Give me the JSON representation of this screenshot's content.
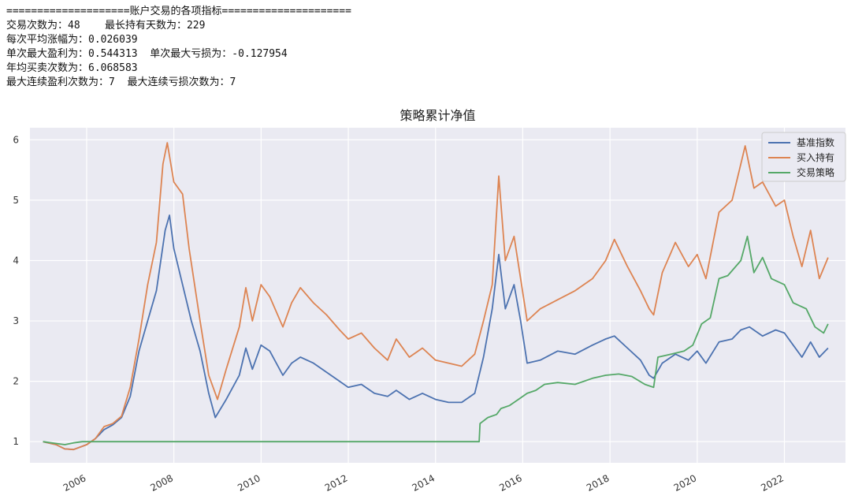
{
  "stats": {
    "header": "====================账户交易的各项指标=====================",
    "lines": [
      "交易次数为：48    最长持有天数为：229",
      "每次平均涨幅为：0.026039",
      "单次最大盈利为：0.544313  单次最大亏损为：-0.127954",
      "年均买卖次数为：6.068583",
      "最大连续盈利次数为：7  最大连续亏损次数为：7"
    ]
  },
  "colors": {
    "plot_bg": "#eaeaf2",
    "grid": "#ffffff",
    "benchmark": "#4c72b0",
    "buy_hold": "#dd8452",
    "strategy": "#55a868"
  },
  "chart_data": {
    "type": "line",
    "title": "策略累计净值",
    "xlabel": "",
    "ylabel": "",
    "xlim": [
      2004.7,
      2023.4
    ],
    "ylim": [
      0.65,
      6.2
    ],
    "x_ticks": [
      2006,
      2008,
      2010,
      2012,
      2014,
      2016,
      2018,
      2020,
      2022
    ],
    "y_ticks": [
      1,
      2,
      3,
      4,
      5,
      6
    ],
    "grid": true,
    "legend_position": "top-right",
    "series": [
      {
        "name": "基准指数",
        "color": "#4c72b0",
        "points": [
          [
            2005.0,
            1.0
          ],
          [
            2005.3,
            0.95
          ],
          [
            2005.5,
            0.88
          ],
          [
            2005.7,
            0.87
          ],
          [
            2006.0,
            0.95
          ],
          [
            2006.2,
            1.05
          ],
          [
            2006.4,
            1.2
          ],
          [
            2006.6,
            1.28
          ],
          [
            2006.8,
            1.4
          ],
          [
            2007.0,
            1.75
          ],
          [
            2007.2,
            2.5
          ],
          [
            2007.4,
            3.0
          ],
          [
            2007.6,
            3.5
          ],
          [
            2007.8,
            4.5
          ],
          [
            2007.9,
            4.75
          ],
          [
            2008.0,
            4.2
          ],
          [
            2008.2,
            3.6
          ],
          [
            2008.4,
            3.0
          ],
          [
            2008.6,
            2.5
          ],
          [
            2008.8,
            1.8
          ],
          [
            2008.95,
            1.4
          ],
          [
            2009.2,
            1.7
          ],
          [
            2009.5,
            2.1
          ],
          [
            2009.65,
            2.55
          ],
          [
            2009.8,
            2.2
          ],
          [
            2010.0,
            2.6
          ],
          [
            2010.2,
            2.5
          ],
          [
            2010.5,
            2.1
          ],
          [
            2010.7,
            2.3
          ],
          [
            2010.9,
            2.4
          ],
          [
            2011.2,
            2.3
          ],
          [
            2011.5,
            2.15
          ],
          [
            2011.8,
            2.0
          ],
          [
            2012.0,
            1.9
          ],
          [
            2012.3,
            1.95
          ],
          [
            2012.6,
            1.8
          ],
          [
            2012.9,
            1.75
          ],
          [
            2013.1,
            1.85
          ],
          [
            2013.4,
            1.7
          ],
          [
            2013.7,
            1.8
          ],
          [
            2014.0,
            1.7
          ],
          [
            2014.3,
            1.65
          ],
          [
            2014.6,
            1.65
          ],
          [
            2014.9,
            1.8
          ],
          [
            2015.1,
            2.4
          ],
          [
            2015.3,
            3.2
          ],
          [
            2015.45,
            4.1
          ],
          [
            2015.6,
            3.2
          ],
          [
            2015.8,
            3.6
          ],
          [
            2015.95,
            3.0
          ],
          [
            2016.1,
            2.3
          ],
          [
            2016.4,
            2.35
          ],
          [
            2016.8,
            2.5
          ],
          [
            2017.2,
            2.45
          ],
          [
            2017.6,
            2.6
          ],
          [
            2017.9,
            2.7
          ],
          [
            2018.1,
            2.75
          ],
          [
            2018.4,
            2.55
          ],
          [
            2018.7,
            2.35
          ],
          [
            2018.9,
            2.1
          ],
          [
            2019.0,
            2.05
          ],
          [
            2019.2,
            2.3
          ],
          [
            2019.5,
            2.45
          ],
          [
            2019.8,
            2.35
          ],
          [
            2020.0,
            2.5
          ],
          [
            2020.2,
            2.3
          ],
          [
            2020.5,
            2.65
          ],
          [
            2020.8,
            2.7
          ],
          [
            2021.0,
            2.85
          ],
          [
            2021.2,
            2.9
          ],
          [
            2021.5,
            2.75
          ],
          [
            2021.8,
            2.85
          ],
          [
            2022.0,
            2.8
          ],
          [
            2022.2,
            2.6
          ],
          [
            2022.4,
            2.4
          ],
          [
            2022.6,
            2.65
          ],
          [
            2022.8,
            2.4
          ],
          [
            2023.0,
            2.55
          ]
        ]
      },
      {
        "name": "买入持有",
        "color": "#dd8452",
        "points": [
          [
            2005.0,
            1.0
          ],
          [
            2005.3,
            0.95
          ],
          [
            2005.5,
            0.88
          ],
          [
            2005.7,
            0.87
          ],
          [
            2006.0,
            0.95
          ],
          [
            2006.2,
            1.05
          ],
          [
            2006.4,
            1.25
          ],
          [
            2006.6,
            1.3
          ],
          [
            2006.8,
            1.42
          ],
          [
            2007.0,
            1.9
          ],
          [
            2007.2,
            2.7
          ],
          [
            2007.4,
            3.6
          ],
          [
            2007.6,
            4.3
          ],
          [
            2007.75,
            5.6
          ],
          [
            2007.85,
            5.95
          ],
          [
            2008.0,
            5.3
          ],
          [
            2008.2,
            5.1
          ],
          [
            2008.35,
            4.2
          ],
          [
            2008.6,
            3.0
          ],
          [
            2008.8,
            2.1
          ],
          [
            2009.0,
            1.7
          ],
          [
            2009.2,
            2.2
          ],
          [
            2009.5,
            2.9
          ],
          [
            2009.65,
            3.55
          ],
          [
            2009.8,
            3.0
          ],
          [
            2010.0,
            3.6
          ],
          [
            2010.2,
            3.4
          ],
          [
            2010.5,
            2.9
          ],
          [
            2010.7,
            3.3
          ],
          [
            2010.9,
            3.55
          ],
          [
            2011.2,
            3.3
          ],
          [
            2011.5,
            3.1
          ],
          [
            2011.8,
            2.85
          ],
          [
            2012.0,
            2.7
          ],
          [
            2012.3,
            2.8
          ],
          [
            2012.6,
            2.55
          ],
          [
            2012.9,
            2.35
          ],
          [
            2013.1,
            2.7
          ],
          [
            2013.4,
            2.4
          ],
          [
            2013.7,
            2.55
          ],
          [
            2014.0,
            2.35
          ],
          [
            2014.3,
            2.3
          ],
          [
            2014.6,
            2.25
          ],
          [
            2014.9,
            2.45
          ],
          [
            2015.1,
            3.0
          ],
          [
            2015.3,
            3.6
          ],
          [
            2015.45,
            5.4
          ],
          [
            2015.6,
            4.0
          ],
          [
            2015.8,
            4.4
          ],
          [
            2015.95,
            3.7
          ],
          [
            2016.1,
            3.0
          ],
          [
            2016.4,
            3.2
          ],
          [
            2016.8,
            3.35
          ],
          [
            2017.2,
            3.5
          ],
          [
            2017.6,
            3.7
          ],
          [
            2017.9,
            4.0
          ],
          [
            2018.1,
            4.35
          ],
          [
            2018.4,
            3.9
          ],
          [
            2018.7,
            3.5
          ],
          [
            2018.9,
            3.2
          ],
          [
            2019.0,
            3.1
          ],
          [
            2019.2,
            3.8
          ],
          [
            2019.5,
            4.3
          ],
          [
            2019.8,
            3.9
          ],
          [
            2020.0,
            4.1
          ],
          [
            2020.2,
            3.7
          ],
          [
            2020.5,
            4.8
          ],
          [
            2020.8,
            5.0
          ],
          [
            2021.0,
            5.6
          ],
          [
            2021.1,
            5.9
          ],
          [
            2021.3,
            5.2
          ],
          [
            2021.5,
            5.3
          ],
          [
            2021.8,
            4.9
          ],
          [
            2022.0,
            5.0
          ],
          [
            2022.2,
            4.4
          ],
          [
            2022.4,
            3.9
          ],
          [
            2022.6,
            4.5
          ],
          [
            2022.8,
            3.7
          ],
          [
            2023.0,
            4.05
          ]
        ]
      },
      {
        "name": "交易策略",
        "color": "#55a868",
        "points": [
          [
            2005.0,
            1.0
          ],
          [
            2005.3,
            0.97
          ],
          [
            2005.5,
            0.95
          ],
          [
            2005.7,
            0.98
          ],
          [
            2005.9,
            1.0
          ],
          [
            2006.0,
            1.0
          ],
          [
            2015.0,
            1.0
          ],
          [
            2015.02,
            1.3
          ],
          [
            2015.2,
            1.4
          ],
          [
            2015.4,
            1.45
          ],
          [
            2015.5,
            1.55
          ],
          [
            2015.7,
            1.6
          ],
          [
            2015.9,
            1.7
          ],
          [
            2016.1,
            1.8
          ],
          [
            2016.3,
            1.85
          ],
          [
            2016.5,
            1.95
          ],
          [
            2016.8,
            1.98
          ],
          [
            2017.2,
            1.95
          ],
          [
            2017.6,
            2.05
          ],
          [
            2017.9,
            2.1
          ],
          [
            2018.2,
            2.12
          ],
          [
            2018.5,
            2.08
          ],
          [
            2018.8,
            1.95
          ],
          [
            2019.0,
            1.9
          ],
          [
            2019.1,
            2.4
          ],
          [
            2019.4,
            2.45
          ],
          [
            2019.7,
            2.5
          ],
          [
            2019.9,
            2.6
          ],
          [
            2020.1,
            2.95
          ],
          [
            2020.3,
            3.05
          ],
          [
            2020.5,
            3.7
          ],
          [
            2020.7,
            3.75
          ],
          [
            2021.0,
            4.0
          ],
          [
            2021.15,
            4.4
          ],
          [
            2021.3,
            3.8
          ],
          [
            2021.5,
            4.05
          ],
          [
            2021.7,
            3.7
          ],
          [
            2022.0,
            3.6
          ],
          [
            2022.2,
            3.3
          ],
          [
            2022.5,
            3.2
          ],
          [
            2022.7,
            2.9
          ],
          [
            2022.9,
            2.8
          ],
          [
            2023.0,
            2.95
          ]
        ]
      }
    ]
  }
}
